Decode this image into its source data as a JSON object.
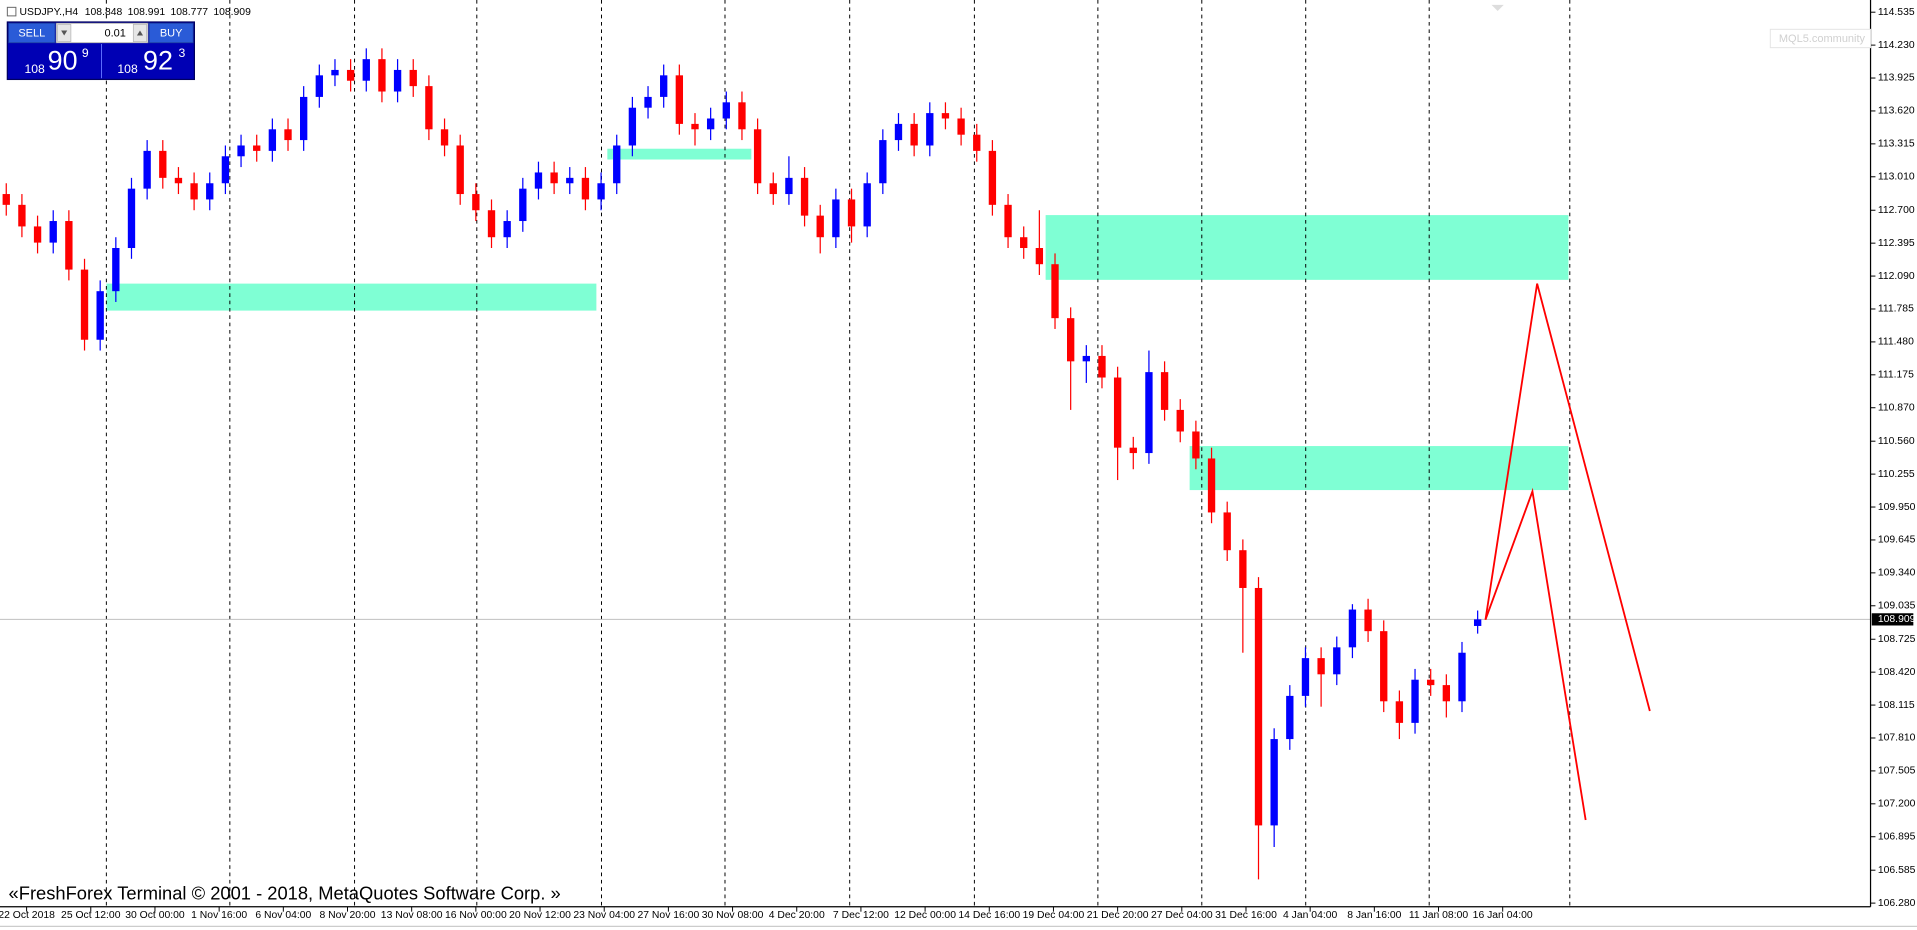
{
  "chart_data": {
    "type": "candlestick",
    "symbol": "USDJPY.,H4",
    "copyright": "«FreshForex Terminal © 2001 - 2018, MetaQuotes Software Corp. »",
    "watermark": "MQL5.community",
    "up_color": "#0000ff",
    "down_color": "#ff0000",
    "zone_color": "#7fffd4",
    "projection_color": "#ff0000",
    "bid_line": 108.909,
    "panel": {
      "sell": "SELL",
      "buy": "BUY",
      "lot": "0.01",
      "sell_price": [
        "108",
        "90",
        "9"
      ],
      "buy_price": [
        "108",
        "92",
        "3"
      ]
    },
    "xlim": [
      -0.4,
      119.1
    ],
    "ylim": [
      106.246,
      114.648
    ],
    "xticks": [
      {
        "value": 1.3,
        "label": "22 Oct 2018"
      },
      {
        "value": 5.4,
        "label": "25 Oct 12:00"
      },
      {
        "value": 9.5,
        "label": "30 Oct 00:00"
      },
      {
        "value": 13.6,
        "label": "1 Nov 16:00"
      },
      {
        "value": 17.7,
        "label": "6 Nov 04:00"
      },
      {
        "value": 21.8,
        "label": "8 Nov 20:00"
      },
      {
        "value": 25.9,
        "label": "13 Nov 08:00"
      },
      {
        "value": 30.0,
        "label": "16 Nov 00:00"
      },
      {
        "value": 34.1,
        "label": "20 Nov 12:00"
      },
      {
        "value": 38.2,
        "label": "23 Nov 04:00"
      },
      {
        "value": 42.3,
        "label": "27 Nov 16:00"
      },
      {
        "value": 46.4,
        "label": "30 Nov 08:00"
      },
      {
        "value": 50.5,
        "label": "4 Dec 20:00"
      },
      {
        "value": 54.6,
        "label": "7 Dec 12:00"
      },
      {
        "value": 58.7,
        "label": "12 Dec 00:00"
      },
      {
        "value": 62.8,
        "label": "14 Dec 16:00"
      },
      {
        "value": 66.9,
        "label": "19 Dec 04:00"
      },
      {
        "value": 71.0,
        "label": "21 Dec 20:00"
      },
      {
        "value": 75.1,
        "label": "27 Dec 04:00"
      },
      {
        "value": 79.2,
        "label": "31 Dec 16:00"
      },
      {
        "value": 83.3,
        "label": "4 Jan 04:00"
      },
      {
        "value": 87.4,
        "label": "8 Jan 16:00"
      },
      {
        "value": 91.5,
        "label": "11 Jan 08:00"
      },
      {
        "value": 95.6,
        "label": "16 Jan 04:00"
      }
    ],
    "yticks": [
      {
        "value": 114.535,
        "label": "114.535"
      },
      {
        "value": 114.23,
        "label": "114.230"
      },
      {
        "value": 113.925,
        "label": "113.925"
      },
      {
        "value": 113.62,
        "label": "113.620"
      },
      {
        "value": 113.315,
        "label": "113.315"
      },
      {
        "value": 113.01,
        "label": "113.010"
      },
      {
        "value": 112.7,
        "label": "112.700"
      },
      {
        "value": 112.395,
        "label": "112.395"
      },
      {
        "value": 112.09,
        "label": "112.090"
      },
      {
        "value": 111.785,
        "label": "111.785"
      },
      {
        "value": 111.48,
        "label": "111.480"
      },
      {
        "value": 111.175,
        "label": "111.175"
      },
      {
        "value": 110.87,
        "label": "110.870"
      },
      {
        "value": 110.56,
        "label": "110.560"
      },
      {
        "value": 110.255,
        "label": "110.255"
      },
      {
        "value": 109.95,
        "label": "109.950"
      },
      {
        "value": 109.645,
        "label": "109.645"
      },
      {
        "value": 109.34,
        "label": "109.340"
      },
      {
        "value": 109.035,
        "label": "109.035"
      },
      {
        "value": 108.725,
        "label": "108.725"
      },
      {
        "value": 108.42,
        "label": "108.420"
      },
      {
        "value": 108.115,
        "label": "108.115"
      },
      {
        "value": 107.81,
        "label": "107.810"
      },
      {
        "value": 107.505,
        "label": "107.505"
      },
      {
        "value": 107.2,
        "label": "107.200"
      },
      {
        "value": 106.895,
        "label": "106.895"
      },
      {
        "value": 106.585,
        "label": "106.585"
      },
      {
        "value": 106.28,
        "label": "106.280"
      }
    ],
    "zones": [
      {
        "x": [
          6.4,
          37.7
        ],
        "y": [
          112.02,
          111.77
        ]
      },
      {
        "x": [
          38.4,
          47.6
        ],
        "y": [
          113.27,
          113.17
        ]
      },
      {
        "x": [
          66.4,
          99.8
        ],
        "y": [
          112.655,
          112.055
        ]
      },
      {
        "x": [
          75.6,
          99.8
        ],
        "y": [
          110.515,
          110.107
        ]
      }
    ],
    "projections": [
      {
        "x": [
          94.5,
          97.8,
          105.0
        ],
        "y": [
          108.906,
          112.02,
          108.06
        ]
      },
      {
        "x": [
          94.5,
          97.5,
          100.9
        ],
        "y": [
          108.906,
          110.095,
          107.05
        ]
      }
    ],
    "candles": [
      [
        112.85,
        112.95,
        112.65,
        112.75
      ],
      [
        112.75,
        112.85,
        112.45,
        112.55
      ],
      [
        112.55,
        112.65,
        112.3,
        112.4
      ],
      [
        112.4,
        112.7,
        112.3,
        112.6
      ],
      [
        112.6,
        112.7,
        112.05,
        112.15
      ],
      [
        112.15,
        112.25,
        111.4,
        111.5
      ],
      [
        111.5,
        112.05,
        111.4,
        111.95
      ],
      [
        111.95,
        112.45,
        111.85,
        112.35
      ],
      [
        112.35,
        113.0,
        112.25,
        112.9
      ],
      [
        112.9,
        113.35,
        112.8,
        113.25
      ],
      [
        113.25,
        113.35,
        112.9,
        113.0
      ],
      [
        113.0,
        113.1,
        112.85,
        112.95
      ],
      [
        112.95,
        113.05,
        112.7,
        112.8
      ],
      [
        112.8,
        113.05,
        112.7,
        112.95
      ],
      [
        112.95,
        113.3,
        112.85,
        113.2
      ],
      [
        113.2,
        113.4,
        113.1,
        113.3
      ],
      [
        113.3,
        113.4,
        113.15,
        113.25
      ],
      [
        113.25,
        113.55,
        113.15,
        113.45
      ],
      [
        113.45,
        113.55,
        113.25,
        113.35
      ],
      [
        113.35,
        113.85,
        113.25,
        113.75
      ],
      [
        113.75,
        114.05,
        113.65,
        113.95
      ],
      [
        113.95,
        114.1,
        113.85,
        114.0
      ],
      [
        114.0,
        114.1,
        113.8,
        113.9
      ],
      [
        113.9,
        114.2,
        113.8,
        114.1
      ],
      [
        114.1,
        114.2,
        113.7,
        113.8
      ],
      [
        113.8,
        114.1,
        113.7,
        114.0
      ],
      [
        114.0,
        114.1,
        113.75,
        113.85
      ],
      [
        113.85,
        113.95,
        113.35,
        113.45
      ],
      [
        113.45,
        113.55,
        113.2,
        113.3
      ],
      [
        113.3,
        113.4,
        112.75,
        112.85
      ],
      [
        112.85,
        112.95,
        112.6,
        112.7
      ],
      [
        112.7,
        112.8,
        112.35,
        112.45
      ],
      [
        112.45,
        112.7,
        112.35,
        112.6
      ],
      [
        112.6,
        113.0,
        112.5,
        112.9
      ],
      [
        112.9,
        113.15,
        112.8,
        113.05
      ],
      [
        113.05,
        113.15,
        112.85,
        112.95
      ],
      [
        112.95,
        113.1,
        112.85,
        113.0
      ],
      [
        113.0,
        113.1,
        112.7,
        112.8
      ],
      [
        112.8,
        113.05,
        112.7,
        112.95
      ],
      [
        112.95,
        113.4,
        112.85,
        113.3
      ],
      [
        113.3,
        113.75,
        113.2,
        113.65
      ],
      [
        113.65,
        113.85,
        113.55,
        113.75
      ],
      [
        113.75,
        114.05,
        113.65,
        113.95
      ],
      [
        113.95,
        114.05,
        113.4,
        113.5
      ],
      [
        113.5,
        113.6,
        113.3,
        113.45
      ],
      [
        113.45,
        113.65,
        113.35,
        113.55
      ],
      [
        113.55,
        113.8,
        113.45,
        113.7
      ],
      [
        113.7,
        113.8,
        113.35,
        113.45
      ],
      [
        113.45,
        113.55,
        112.85,
        112.95
      ],
      [
        112.95,
        113.05,
        112.75,
        112.85
      ],
      [
        112.85,
        113.2,
        112.75,
        113.0
      ],
      [
        113.0,
        113.1,
        112.55,
        112.65
      ],
      [
        112.65,
        112.75,
        112.3,
        112.45
      ],
      [
        112.45,
        112.9,
        112.35,
        112.8
      ],
      [
        112.8,
        112.9,
        112.4,
        112.55
      ],
      [
        112.55,
        113.05,
        112.45,
        112.95
      ],
      [
        112.95,
        113.45,
        112.85,
        113.35
      ],
      [
        113.35,
        113.6,
        113.25,
        113.5
      ],
      [
        113.5,
        113.6,
        113.2,
        113.3
      ],
      [
        113.3,
        113.7,
        113.2,
        113.6
      ],
      [
        113.6,
        113.7,
        113.45,
        113.55
      ],
      [
        113.55,
        113.65,
        113.3,
        113.4
      ],
      [
        113.4,
        113.5,
        113.15,
        113.25
      ],
      [
        113.25,
        113.35,
        112.65,
        112.75
      ],
      [
        112.75,
        112.85,
        112.35,
        112.45
      ],
      [
        112.45,
        112.55,
        112.25,
        112.35
      ],
      [
        112.35,
        112.7,
        112.1,
        112.2
      ],
      [
        112.2,
        112.3,
        111.6,
        111.7
      ],
      [
        111.7,
        111.8,
        110.85,
        111.3
      ],
      [
        111.3,
        111.45,
        111.1,
        111.35
      ],
      [
        111.35,
        111.45,
        111.05,
        111.15
      ],
      [
        111.15,
        111.25,
        110.2,
        110.5
      ],
      [
        110.5,
        110.6,
        110.3,
        110.45
      ],
      [
        110.45,
        111.4,
        110.35,
        111.2
      ],
      [
        111.2,
        111.3,
        110.75,
        110.85
      ],
      [
        110.85,
        110.95,
        110.55,
        110.65
      ],
      [
        110.65,
        110.75,
        110.3,
        110.4
      ],
      [
        110.4,
        110.5,
        109.8,
        109.9
      ],
      [
        109.9,
        110.0,
        109.45,
        109.55
      ],
      [
        109.55,
        109.65,
        108.6,
        109.2
      ],
      [
        109.2,
        109.3,
        106.5,
        107.0
      ],
      [
        107.0,
        107.9,
        106.8,
        107.8
      ],
      [
        107.8,
        108.3,
        107.7,
        108.2
      ],
      [
        108.2,
        108.65,
        108.1,
        108.55
      ],
      [
        108.55,
        108.65,
        108.1,
        108.4
      ],
      [
        108.4,
        108.75,
        108.3,
        108.65
      ],
      [
        108.65,
        109.05,
        108.55,
        109.0
      ],
      [
        109.0,
        109.1,
        108.7,
        108.8
      ],
      [
        108.8,
        108.9,
        108.05,
        108.15
      ],
      [
        108.15,
        108.25,
        107.8,
        107.95
      ],
      [
        107.95,
        108.45,
        107.85,
        108.35
      ],
      [
        108.35,
        108.45,
        108.2,
        108.3
      ],
      [
        108.3,
        108.4,
        108.0,
        108.15
      ],
      [
        108.15,
        108.7,
        108.05,
        108.6
      ],
      [
        108.848,
        108.991,
        108.777,
        108.909
      ]
    ]
  }
}
